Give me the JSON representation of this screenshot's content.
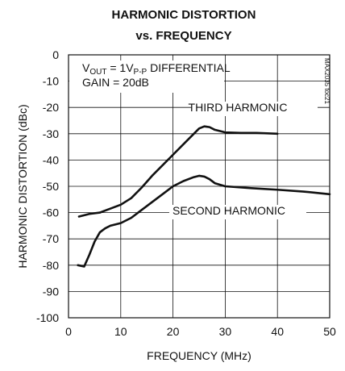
{
  "chart_data": {
    "type": "line",
    "title": "HARMONIC DISTORTION",
    "subtitle": "vs. FREQUENCY",
    "xlabel": "FREQUENCY (MHz)",
    "ylabel": "HARMONIC DISTORTION (dBc)",
    "xlim": [
      0,
      50
    ],
    "ylim": [
      -100,
      0
    ],
    "xticks": [
      0,
      10,
      20,
      30,
      40,
      50
    ],
    "yticks": [
      0,
      -10,
      -20,
      -30,
      -40,
      -50,
      -60,
      -70,
      -80,
      -90,
      -100
    ],
    "grid": true,
    "conditions": {
      "vout_main": "V",
      "vout_sub": "OUT",
      "vout_mid": " = 1V",
      "vout_sub2": "P-P",
      "vout_tail": " DIFFERENTIAL",
      "gain": "GAIN = 20dB"
    },
    "part_number": "MAX2035 toc21",
    "series": [
      {
        "name": "THIRD HARMONIC",
        "x": [
          2,
          4,
          6,
          8,
          10,
          12,
          14,
          16,
          18,
          20,
          22,
          24,
          25,
          26,
          27,
          28,
          30,
          33,
          36,
          40
        ],
        "y": [
          -61.5,
          -60.5,
          -60,
          -58.5,
          -57,
          -54.5,
          -50.5,
          -46,
          -42,
          -38,
          -34,
          -30,
          -28,
          -27.2,
          -27.5,
          -28.5,
          -29.5,
          -29.7,
          -29.7,
          -30
        ]
      },
      {
        "name": "SECOND HARMONIC",
        "x": [
          1.8,
          3,
          4,
          5,
          6,
          7,
          8,
          10,
          12,
          14,
          16,
          18,
          20,
          22,
          24,
          25,
          26,
          27,
          28,
          30,
          35,
          40,
          45,
          50
        ],
        "y": [
          -80,
          -80.5,
          -76,
          -71,
          -67.5,
          -66,
          -65,
          -64,
          -62,
          -59,
          -56,
          -53,
          -50,
          -48,
          -46.5,
          -46,
          -46.3,
          -47.3,
          -48.8,
          -50,
          -50.7,
          -51.3,
          -52,
          -53
        ]
      }
    ]
  }
}
